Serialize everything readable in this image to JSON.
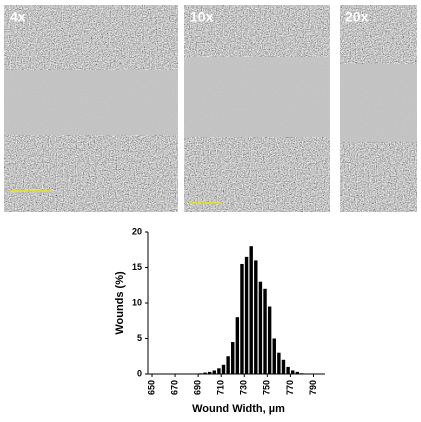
{
  "panels": [
    {
      "label": "4x"
    },
    {
      "label": "10x"
    },
    {
      "label": "20x"
    }
  ],
  "chart_data": {
    "type": "histogram",
    "xlabel": "Wound Width, µm",
    "ylabel": "Wounds (%)",
    "bins": [
      690,
      694,
      698,
      702,
      706,
      710,
      714,
      718,
      722,
      726,
      730,
      734,
      738,
      742,
      746,
      750,
      754,
      758,
      762,
      766,
      770,
      774,
      778,
      782
    ],
    "values": [
      0.1,
      0.2,
      0.3,
      0.5,
      0.8,
      1.3,
      2.5,
      4.5,
      8,
      15.5,
      16.5,
      18,
      16,
      13,
      12,
      9.5,
      5,
      3,
      2,
      1,
      0.5,
      0.3,
      0.1
    ],
    "color": "#000000",
    "xlim": [
      650,
      800
    ],
    "xticks": [
      650,
      670,
      690,
      710,
      730,
      750,
      770,
      790
    ],
    "ylim": [
      0,
      20
    ],
    "yticks": [
      0,
      5,
      10,
      15,
      20
    ]
  }
}
